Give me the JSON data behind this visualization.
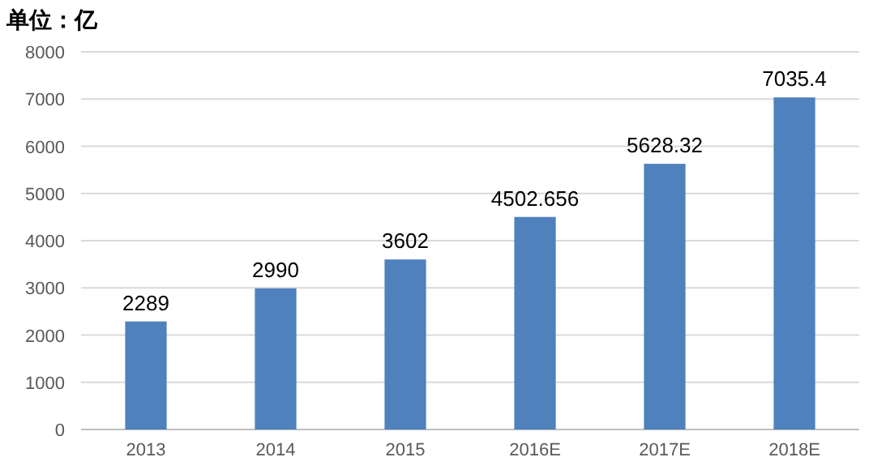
{
  "chart_data": {
    "type": "bar",
    "ylabel": "单位：亿",
    "categories": [
      "2013",
      "2014",
      "2015",
      "2016E",
      "2017E",
      "2018E"
    ],
    "values": [
      2289,
      2990,
      3602,
      4502.656,
      5628.32,
      7035.4
    ],
    "color": "#4f81bd",
    "ylim": [
      0,
      8000
    ],
    "yticks": [
      0,
      1000,
      2000,
      3000,
      4000,
      5000,
      6000,
      7000,
      8000
    ],
    "grid": "y",
    "data_labels": true
  }
}
